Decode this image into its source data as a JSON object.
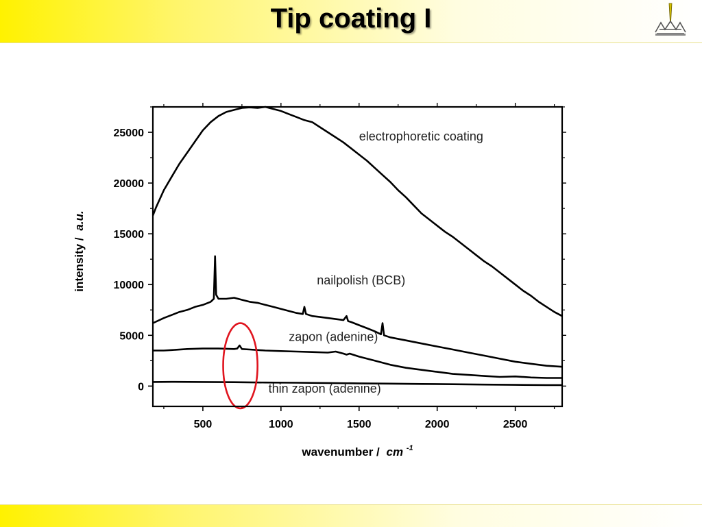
{
  "slide": {
    "title": "Tip coating I"
  },
  "chart_data": {
    "type": "line",
    "title": "",
    "xlabel": "wavenumber /",
    "xlabel_unit": "cm",
    "xlabel_unit_sup": "-1",
    "ylabel": "intensity /",
    "ylabel_unit": "a.u.",
    "xlim": [
      180,
      2800
    ],
    "ylim": [
      -2000,
      27500
    ],
    "x_ticks": [
      500,
      1000,
      1500,
      2000,
      2500
    ],
    "y_ticks": [
      0,
      5000,
      10000,
      15000,
      20000,
      25000
    ],
    "grid": false,
    "series": [
      {
        "name": "electrophoretic coating",
        "points": [
          [
            180,
            16800
          ],
          [
            200,
            17600
          ],
          [
            250,
            19300
          ],
          [
            300,
            20600
          ],
          [
            350,
            21900
          ],
          [
            400,
            23000
          ],
          [
            450,
            24100
          ],
          [
            500,
            25200
          ],
          [
            550,
            26000
          ],
          [
            600,
            26600
          ],
          [
            650,
            27000
          ],
          [
            700,
            27200
          ],
          [
            750,
            27400
          ],
          [
            800,
            27450
          ],
          [
            850,
            27400
          ],
          [
            900,
            27500
          ],
          [
            950,
            27300
          ],
          [
            1000,
            27100
          ],
          [
            1050,
            26800
          ],
          [
            1100,
            26500
          ],
          [
            1150,
            26200
          ],
          [
            1200,
            26000
          ],
          [
            1250,
            25500
          ],
          [
            1300,
            25000
          ],
          [
            1350,
            24500
          ],
          [
            1400,
            24000
          ],
          [
            1450,
            23400
          ],
          [
            1500,
            22800
          ],
          [
            1550,
            22200
          ],
          [
            1600,
            21500
          ],
          [
            1650,
            20800
          ],
          [
            1700,
            20100
          ],
          [
            1750,
            19300
          ],
          [
            1800,
            18600
          ],
          [
            1850,
            17800
          ],
          [
            1900,
            17000
          ],
          [
            1950,
            16400
          ],
          [
            2000,
            15800
          ],
          [
            2050,
            15200
          ],
          [
            2100,
            14700
          ],
          [
            2150,
            14100
          ],
          [
            2200,
            13500
          ],
          [
            2250,
            12900
          ],
          [
            2300,
            12300
          ],
          [
            2350,
            11800
          ],
          [
            2400,
            11200
          ],
          [
            2450,
            10600
          ],
          [
            2500,
            10000
          ],
          [
            2550,
            9400
          ],
          [
            2600,
            8900
          ],
          [
            2650,
            8300
          ],
          [
            2700,
            7800
          ],
          [
            2750,
            7300
          ],
          [
            2800,
            6900
          ]
        ],
        "label_at": [
          1500,
          24200
        ]
      },
      {
        "name": "nailpolish (BCB)",
        "points": [
          [
            180,
            6200
          ],
          [
            250,
            6700
          ],
          [
            300,
            7000
          ],
          [
            350,
            7300
          ],
          [
            400,
            7500
          ],
          [
            450,
            7800
          ],
          [
            500,
            8000
          ],
          [
            550,
            8300
          ],
          [
            570,
            8600
          ],
          [
            578,
            12800
          ],
          [
            585,
            9000
          ],
          [
            600,
            8600
          ],
          [
            650,
            8600
          ],
          [
            700,
            8700
          ],
          [
            750,
            8500
          ],
          [
            800,
            8300
          ],
          [
            850,
            8200
          ],
          [
            900,
            8000
          ],
          [
            950,
            7800
          ],
          [
            1000,
            7600
          ],
          [
            1050,
            7400
          ],
          [
            1100,
            7200
          ],
          [
            1140,
            7100
          ],
          [
            1150,
            7800
          ],
          [
            1160,
            7100
          ],
          [
            1200,
            6900
          ],
          [
            1250,
            6800
          ],
          [
            1300,
            6700
          ],
          [
            1350,
            6600
          ],
          [
            1400,
            6500
          ],
          [
            1420,
            6900
          ],
          [
            1430,
            6400
          ],
          [
            1450,
            6300
          ],
          [
            1500,
            6000
          ],
          [
            1550,
            5700
          ],
          [
            1600,
            5400
          ],
          [
            1640,
            5100
          ],
          [
            1650,
            6200
          ],
          [
            1660,
            5000
          ],
          [
            1700,
            4800
          ],
          [
            1800,
            4500
          ],
          [
            1900,
            4200
          ],
          [
            2000,
            3900
          ],
          [
            2100,
            3600
          ],
          [
            2200,
            3300
          ],
          [
            2300,
            3000
          ],
          [
            2400,
            2700
          ],
          [
            2500,
            2400
          ],
          [
            2600,
            2200
          ],
          [
            2700,
            2000
          ],
          [
            2800,
            1900
          ]
        ],
        "label_at": [
          1230,
          10000
        ]
      },
      {
        "name": "zapon (adenine)",
        "points": [
          [
            180,
            3500
          ],
          [
            250,
            3500
          ],
          [
            300,
            3550
          ],
          [
            400,
            3650
          ],
          [
            500,
            3700
          ],
          [
            600,
            3700
          ],
          [
            700,
            3650
          ],
          [
            720,
            3700
          ],
          [
            735,
            4000
          ],
          [
            750,
            3650
          ],
          [
            800,
            3600
          ],
          [
            900,
            3500
          ],
          [
            1000,
            3450
          ],
          [
            1100,
            3400
          ],
          [
            1200,
            3350
          ],
          [
            1300,
            3300
          ],
          [
            1350,
            3400
          ],
          [
            1400,
            3200
          ],
          [
            1420,
            3100
          ],
          [
            1440,
            3200
          ],
          [
            1500,
            2900
          ],
          [
            1600,
            2500
          ],
          [
            1700,
            2100
          ],
          [
            1800,
            1800
          ],
          [
            1900,
            1600
          ],
          [
            2000,
            1400
          ],
          [
            2100,
            1200
          ],
          [
            2200,
            1100
          ],
          [
            2300,
            1000
          ],
          [
            2400,
            900
          ],
          [
            2500,
            950
          ],
          [
            2600,
            850
          ],
          [
            2700,
            800
          ],
          [
            2800,
            800
          ]
        ],
        "label_at": [
          1050,
          4450
        ]
      },
      {
        "name": "thin zapon (adenine)",
        "points": [
          [
            180,
            400
          ],
          [
            300,
            420
          ],
          [
            500,
            400
          ],
          [
            700,
            380
          ],
          [
            900,
            350
          ],
          [
            1100,
            330
          ],
          [
            1300,
            300
          ],
          [
            1500,
            270
          ],
          [
            1700,
            240
          ],
          [
            1900,
            210
          ],
          [
            2100,
            180
          ],
          [
            2300,
            150
          ],
          [
            2500,
            120
          ],
          [
            2700,
            100
          ],
          [
            2800,
            100
          ]
        ],
        "label_at": [
          920,
          -650
        ]
      }
    ],
    "annotations": [
      {
        "type": "ellipse",
        "center": [
          740,
          2000
        ],
        "rx_data": 110,
        "ry_data": 4200,
        "color": "#e0141e"
      }
    ],
    "colors": {
      "series": "#000000",
      "highlight": "#e0141e"
    }
  }
}
